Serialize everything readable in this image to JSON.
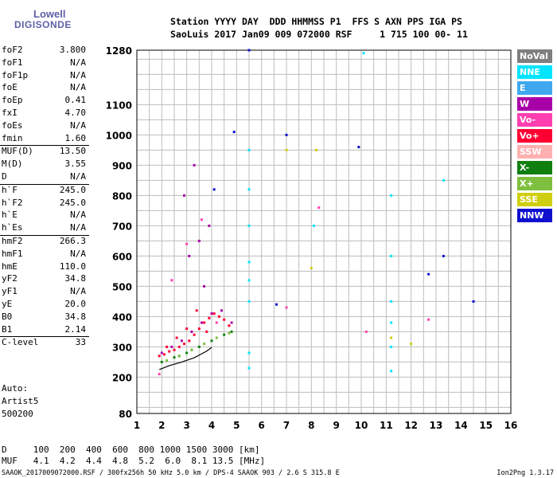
{
  "logo": {
    "line1": "Lowell",
    "line2": "DIGISONDE"
  },
  "header": {
    "row1": "Station YYYY DAY  DDD HHMMSS P1  FFS S AXN PPS IGA PS",
    "row2": "SaoLuis 2017 Jan09 009 072000 RSF     1 715 100 00- 11"
  },
  "params": [
    {
      "label": "foF2",
      "value": "3.800"
    },
    {
      "label": "foF1",
      "value": "N/A"
    },
    {
      "label": "foF1p",
      "value": "N/A"
    },
    {
      "label": "foE",
      "value": "N/A"
    },
    {
      "label": "foEp",
      "value": "0.41"
    },
    {
      "label": "fxI",
      "value": "4.70"
    },
    {
      "label": "foEs",
      "value": "N/A"
    },
    {
      "label": "fmin",
      "value": "1.60"
    },
    {
      "label": "MUF(D)",
      "value": "13.50"
    },
    {
      "label": "M(D)",
      "value": "3.55"
    },
    {
      "label": "D",
      "value": "N/A"
    },
    {
      "label": "h`F",
      "value": "245.0"
    },
    {
      "label": "h`F2",
      "value": "245.0"
    },
    {
      "label": "h`E",
      "value": "N/A"
    },
    {
      "label": "h`Es",
      "value": "N/A"
    },
    {
      "label": "hmF2",
      "value": "266.3"
    },
    {
      "label": "hmF1",
      "value": "N/A"
    },
    {
      "label": "hmE",
      "value": "110.0"
    },
    {
      "label": "yF2",
      "value": "34.8"
    },
    {
      "label": "yF1",
      "value": "N/A"
    },
    {
      "label": "yE",
      "value": "20.0"
    },
    {
      "label": "B0",
      "value": "34.8"
    },
    {
      "label": "B1",
      "value": "2.14"
    },
    {
      "label": "C-level",
      "value": "33"
    }
  ],
  "auto": {
    "line1": "Auto:",
    "line2": "Artist5",
    "line3": "500200"
  },
  "legend": [
    {
      "label": "NoVal",
      "color": "#7f7f7f"
    },
    {
      "label": "NNE",
      "color": "#00e5ff"
    },
    {
      "label": "E",
      "color": "#3fa8ef"
    },
    {
      "label": "W",
      "color": "#a800a8"
    },
    {
      "label": "Vo-",
      "color": "#ff3fb0"
    },
    {
      "label": "Vo+",
      "color": "#ff0033"
    },
    {
      "label": "SSW",
      "color": "#ffb0b0"
    },
    {
      "label": "X-",
      "color": "#107f10"
    },
    {
      "label": "X+",
      "color": "#7fbf3f"
    },
    {
      "label": "SSE",
      "color": "#cfcf10"
    },
    {
      "label": "NNW",
      "color": "#1010cf"
    }
  ],
  "footer": {
    "d_row": "D     100  200  400  600  800 1000 1500 3000 [km]",
    "muf_row": "MUF   4.1  4.2  4.4  4.8  5.2  6.0  8.1 13.5 [MHz]",
    "file_line": "SAAOK_2017009072000.RSF / 300fx256h 50 kHz 5.0 km / DPS-4 SAAOK 903 / 2.6 S 315.8 E",
    "version": "Ion2Png 1.3.17"
  },
  "chart_data": {
    "type": "scatter",
    "xlim": [
      1,
      16
    ],
    "ylim": [
      80,
      1280
    ],
    "xticks": [
      "1",
      "2",
      "3",
      "4",
      "5",
      "6",
      "7",
      "8",
      "9",
      "10",
      "11",
      "12",
      "13",
      "14",
      "15",
      "16"
    ],
    "yticks": [
      "80",
      "200",
      "300",
      "400",
      "500",
      "600",
      "700",
      "800",
      "900",
      "1000",
      "1100",
      "1280"
    ],
    "grid": true,
    "series": [
      {
        "color": "#ff0033",
        "x": [
          1.9,
          2.1,
          2.3,
          2.5,
          2.7,
          2.9,
          3.1,
          3.3,
          3.5,
          3.7,
          3.9,
          4.1,
          4.3,
          4.5,
          4.7,
          2.2,
          2.6,
          3.0,
          3.4,
          3.8
        ],
        "y": [
          270,
          275,
          285,
          290,
          300,
          310,
          320,
          340,
          360,
          380,
          395,
          410,
          400,
          390,
          370,
          300,
          330,
          360,
          420,
          350
        ]
      },
      {
        "color": "#a800a8",
        "x": [
          2.0,
          2.4,
          2.8,
          3.2,
          3.6,
          4.0,
          4.4,
          4.8,
          3.1,
          3.5,
          3.9,
          2.9,
          3.3,
          3.7
        ],
        "y": [
          280,
          300,
          320,
          350,
          380,
          410,
          420,
          380,
          600,
          650,
          700,
          800,
          900,
          500
        ]
      },
      {
        "color": "#107f10",
        "x": [
          2.0,
          2.5,
          3.0,
          3.5,
          4.0,
          4.5,
          4.8,
          2.7,
          3.2
        ],
        "y": [
          250,
          265,
          280,
          300,
          320,
          340,
          350,
          270,
          290
        ]
      },
      {
        "color": "#7fbf3f",
        "x": [
          2.2,
          2.7,
          3.2,
          3.7,
          4.2,
          4.7
        ],
        "y": [
          255,
          270,
          290,
          310,
          330,
          345
        ]
      },
      {
        "color": "#00e5ff",
        "x": [
          5.5,
          5.5,
          5.5,
          5.5,
          5.5,
          5.5,
          5.5,
          5.5,
          11.2,
          11.2,
          11.2,
          11.2,
          11.2,
          11.2,
          8.1,
          13.3,
          10.1
        ],
        "y": [
          230,
          280,
          450,
          520,
          580,
          700,
          820,
          950,
          220,
          300,
          380,
          450,
          600,
          800,
          700,
          850,
          1270
        ]
      },
      {
        "color": "#1010cf",
        "x": [
          5.5,
          6.6,
          9.9,
          12.7,
          13.3,
          14.5,
          4.1,
          4.9,
          7.0
        ],
        "y": [
          1280,
          440,
          960,
          540,
          600,
          450,
          820,
          1010,
          1000
        ]
      },
      {
        "color": "#ff3fb0",
        "x": [
          1.9,
          2.4,
          3.0,
          3.6,
          4.2,
          7.0,
          8.3,
          12.7,
          10.2
        ],
        "y": [
          210,
          520,
          640,
          720,
          380,
          430,
          760,
          390,
          350
        ]
      },
      {
        "color": "#cfcf10",
        "x": [
          7.0,
          8.2,
          8.0,
          11.2,
          12.0
        ],
        "y": [
          950,
          950,
          560,
          330,
          310
        ]
      }
    ],
    "curve": {
      "x": [
        1.9,
        2.3,
        2.8,
        3.3,
        3.8,
        4.0
      ],
      "y": [
        225,
        238,
        250,
        264,
        286,
        298
      ]
    }
  }
}
